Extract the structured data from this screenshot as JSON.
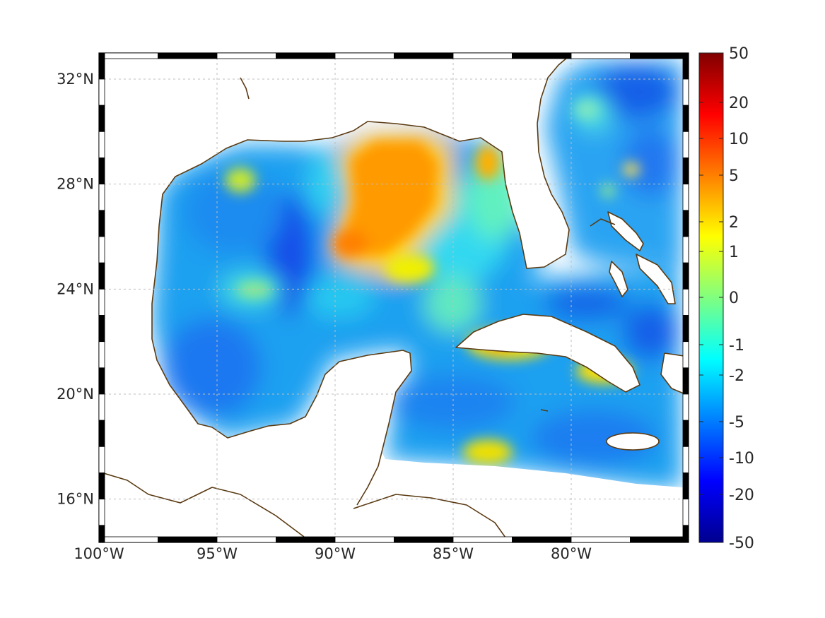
{
  "map": {
    "lon_range": [
      -100,
      -75
    ],
    "lat_range": [
      14.5,
      33
    ],
    "lon_ticks": [
      {
        "value": -100,
        "label": "100°W"
      },
      {
        "value": -95,
        "label": "95°W"
      },
      {
        "value": -90,
        "label": "90°W"
      },
      {
        "value": -85,
        "label": "85°W"
      },
      {
        "value": -80,
        "label": "80°W"
      }
    ],
    "lat_ticks": [
      {
        "value": 16,
        "label": "16°N"
      },
      {
        "value": 20,
        "label": "20°N"
      },
      {
        "value": 24,
        "label": "24°N"
      },
      {
        "value": 28,
        "label": "28°N"
      },
      {
        "value": 32,
        "label": "32°N"
      }
    ],
    "grid": true,
    "frame": "black-white checkered border",
    "coastline_color": "#5a3a12",
    "land_color": "#ffffff"
  },
  "colorbar": {
    "colormap": "jet",
    "placement": "right",
    "ticks": [
      "50",
      "20",
      "10",
      "5",
      "2",
      "1",
      "0",
      "-1",
      "-2",
      "-5",
      "-10",
      "-20",
      "-50"
    ],
    "range": [
      -50,
      50
    ]
  }
}
